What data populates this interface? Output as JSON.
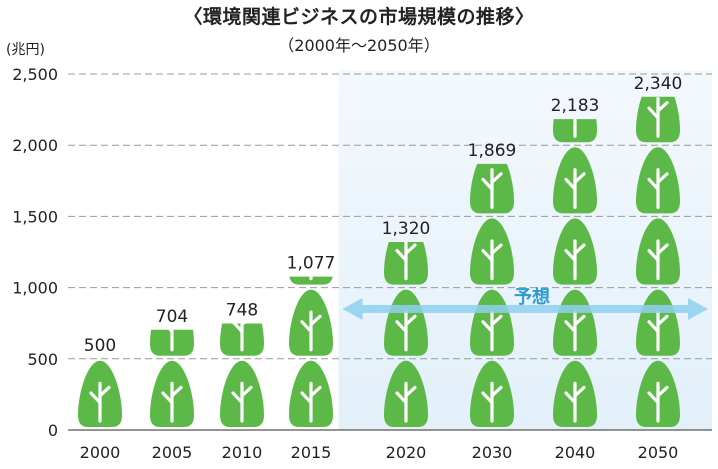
{
  "chart_data": {
    "type": "bar",
    "title": "〈環境関連ビジネスの市場規模の推移〉",
    "subtitle": "（2000年〜2050年）",
    "ylabel": "(兆円)",
    "ylim": [
      0,
      2500
    ],
    "yticks": [
      0,
      500,
      1000,
      1500,
      2000,
      2500
    ],
    "ytick_labels": [
      "0",
      "500",
      "1,000",
      "1,500",
      "2,000",
      "2,500"
    ],
    "categories": [
      "2000",
      "2005",
      "2010",
      "2015",
      "2020",
      "2030",
      "2040",
      "2050"
    ],
    "values": [
      500,
      704,
      748,
      1077,
      1320,
      1869,
      2183,
      2340
    ],
    "value_labels": [
      "500",
      "704",
      "748",
      "1,077",
      "1,320",
      "1,869",
      "2,183",
      "2,340"
    ],
    "grid": true,
    "annotation": "予想",
    "forecast_start_index": 4,
    "colors": {
      "tree": "#5cb947",
      "trunk": "#ffffff",
      "forecast_bg": "#e3f0fa",
      "arrow": "#8fd0ef",
      "annotation_text": "#2e9ad0"
    }
  }
}
